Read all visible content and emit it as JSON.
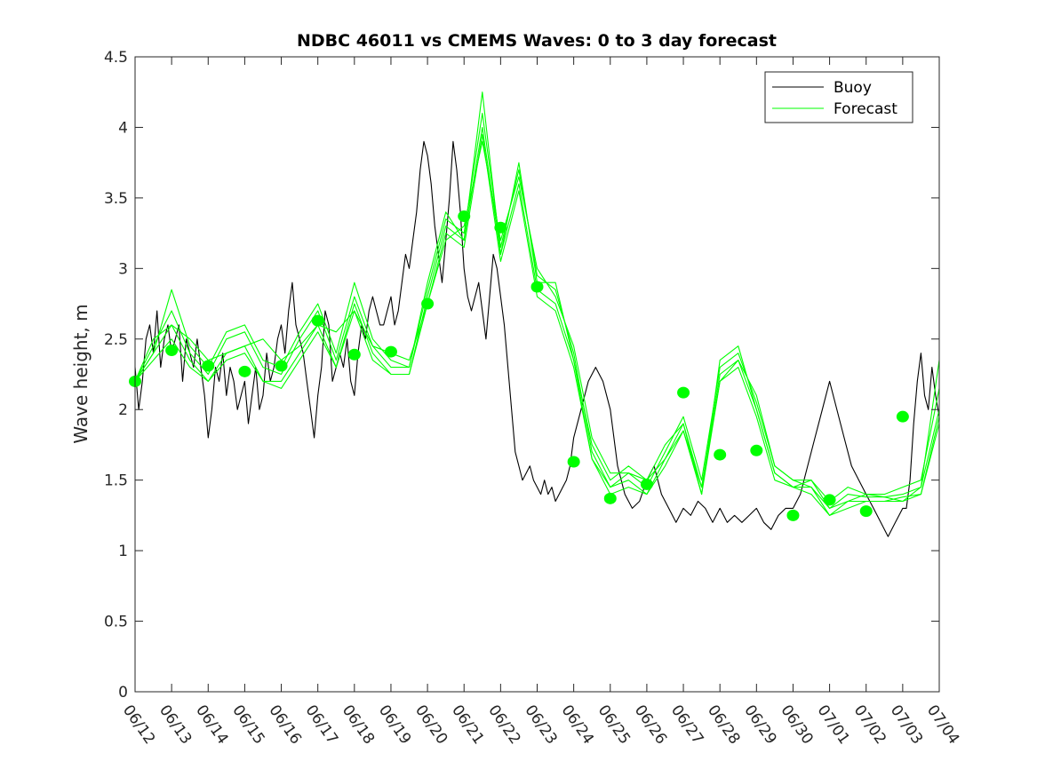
{
  "chart_data": {
    "type": "line",
    "title": "NDBC 46011 vs CMEMS Waves: 0 to 3 day forecast",
    "xlabel": "",
    "ylabel": "Wave height, m",
    "xlim": [
      "06/12",
      "07/04"
    ],
    "ylim": [
      0,
      4.5
    ],
    "yticks": [
      "0",
      "0.5",
      "1",
      "1.5",
      "2",
      "2.5",
      "3",
      "3.5",
      "4",
      "4.5"
    ],
    "x_tick_labels": [
      "06/12",
      "06/13",
      "06/14",
      "06/15",
      "06/16",
      "06/17",
      "06/18",
      "06/19",
      "06/20",
      "06/21",
      "06/22",
      "06/23",
      "06/24",
      "06/25",
      "06/26",
      "06/27",
      "06/28",
      "06/29",
      "06/30",
      "07/01",
      "07/02",
      "07/03",
      "07/04"
    ],
    "legend": {
      "placement": "top-right",
      "entries": [
        "Buoy",
        "Forecast"
      ]
    },
    "colors": {
      "buoy": "#000000",
      "forecast": "#00ff00"
    },
    "series": [
      {
        "name": "Buoy",
        "x": [
          0,
          0.1,
          0.2,
          0.3,
          0.4,
          0.5,
          0.6,
          0.7,
          0.8,
          0.9,
          1.0,
          1.1,
          1.2,
          1.3,
          1.4,
          1.5,
          1.6,
          1.7,
          1.8,
          1.9,
          2.0,
          2.1,
          2.2,
          2.3,
          2.4,
          2.5,
          2.6,
          2.7,
          2.8,
          2.9,
          3.0,
          3.1,
          3.2,
          3.3,
          3.4,
          3.5,
          3.6,
          3.7,
          3.8,
          3.9,
          4.0,
          4.1,
          4.2,
          4.3,
          4.4,
          4.5,
          4.6,
          4.7,
          4.8,
          4.9,
          5.0,
          5.1,
          5.2,
          5.3,
          5.4,
          5.5,
          5.6,
          5.7,
          5.8,
          5.9,
          6.0,
          6.1,
          6.2,
          6.3,
          6.4,
          6.5,
          6.6,
          6.7,
          6.8,
          6.9,
          7.0,
          7.1,
          7.2,
          7.3,
          7.4,
          7.5,
          7.6,
          7.7,
          7.8,
          7.9,
          8.0,
          8.1,
          8.2,
          8.3,
          8.4,
          8.5,
          8.6,
          8.7,
          8.8,
          8.9,
          9.0,
          9.1,
          9.2,
          9.3,
          9.4,
          9.5,
          9.6,
          9.7,
          9.8,
          9.9,
          10.0,
          10.1,
          10.2,
          10.3,
          10.4,
          10.5,
          10.6,
          10.7,
          10.8,
          10.9,
          11.0,
          11.1,
          11.2,
          11.3,
          11.4,
          11.5,
          11.6,
          11.7,
          11.8,
          11.9,
          12.0,
          12.2,
          12.4,
          12.6,
          12.8,
          13.0,
          13.2,
          13.4,
          13.6,
          13.8,
          14.0,
          14.2,
          14.4,
          14.6,
          14.8,
          15.0,
          15.2,
          15.4,
          15.6,
          15.8,
          16.0,
          16.2,
          16.4,
          16.6,
          16.8,
          17.0,
          17.2,
          17.4,
          17.6,
          17.8,
          18.0,
          18.2,
          18.4,
          18.6,
          18.8,
          19.0,
          19.2,
          19.4,
          19.6,
          19.8,
          20.0,
          20.2,
          20.4,
          20.6,
          20.8,
          21.0,
          21.1,
          21.2,
          21.3,
          21.4,
          21.5,
          21.6,
          21.7,
          21.8,
          21.9,
          22.0
        ],
        "values": [
          2.3,
          2.0,
          2.2,
          2.5,
          2.6,
          2.4,
          2.7,
          2.3,
          2.5,
          2.6,
          2.4,
          2.5,
          2.6,
          2.2,
          2.5,
          2.4,
          2.3,
          2.5,
          2.3,
          2.1,
          1.8,
          2.0,
          2.3,
          2.2,
          2.4,
          2.1,
          2.3,
          2.2,
          2.0,
          2.1,
          2.2,
          1.9,
          2.1,
          2.3,
          2.0,
          2.1,
          2.4,
          2.2,
          2.3,
          2.5,
          2.6,
          2.4,
          2.7,
          2.9,
          2.6,
          2.5,
          2.4,
          2.2,
          2.0,
          1.8,
          2.1,
          2.3,
          2.7,
          2.6,
          2.2,
          2.3,
          2.4,
          2.3,
          2.5,
          2.2,
          2.1,
          2.4,
          2.6,
          2.5,
          2.7,
          2.8,
          2.7,
          2.6,
          2.6,
          2.7,
          2.8,
          2.6,
          2.7,
          2.9,
          3.1,
          3.0,
          3.2,
          3.4,
          3.7,
          3.9,
          3.8,
          3.6,
          3.3,
          3.1,
          2.9,
          3.2,
          3.5,
          3.9,
          3.7,
          3.4,
          3.0,
          2.8,
          2.7,
          2.8,
          2.9,
          2.7,
          2.5,
          2.8,
          3.1,
          3.0,
          2.8,
          2.6,
          2.3,
          2.0,
          1.7,
          1.6,
          1.5,
          1.55,
          1.6,
          1.5,
          1.45,
          1.4,
          1.5,
          1.4,
          1.45,
          1.35,
          1.4,
          1.45,
          1.5,
          1.6,
          1.8,
          2.0,
          2.2,
          2.3,
          2.2,
          2.0,
          1.6,
          1.4,
          1.3,
          1.35,
          1.5,
          1.6,
          1.4,
          1.3,
          1.2,
          1.3,
          1.25,
          1.35,
          1.3,
          1.2,
          1.3,
          1.2,
          1.25,
          1.2,
          1.25,
          1.3,
          1.2,
          1.15,
          1.25,
          1.3,
          1.3,
          1.4,
          1.6,
          1.8,
          2.0,
          2.2,
          2.0,
          1.8,
          1.6,
          1.5,
          1.4,
          1.3,
          1.2,
          1.1,
          1.2,
          1.3,
          1.3,
          1.5,
          1.9,
          2.2,
          2.4,
          2.1,
          2.0,
          2.3,
          2.1,
          1.95
        ]
      },
      {
        "name": "Forecast",
        "x": [
          0,
          0.5,
          1,
          1.5,
          2,
          2.5,
          3,
          3.5,
          4,
          4.5,
          5,
          5.5,
          6,
          6.5,
          7,
          7.5,
          8,
          8.5,
          9,
          9.5,
          10,
          10.5,
          11,
          11.5,
          12,
          12.5,
          13,
          13.5,
          14,
          14.5,
          15,
          15.5,
          16,
          16.5,
          17,
          17.5,
          18,
          18.5,
          19,
          19.5,
          20,
          20.5,
          21,
          21.5,
          22
        ],
        "values": [
          2.2,
          2.5,
          2.6,
          2.5,
          2.35,
          2.4,
          2.45,
          2.5,
          2.35,
          2.45,
          2.6,
          2.55,
          2.7,
          2.45,
          2.4,
          2.35,
          2.75,
          3.2,
          3.3,
          3.9,
          3.2,
          3.65,
          3.0,
          2.8,
          2.45,
          1.8,
          1.55,
          1.55,
          1.5,
          1.65,
          1.85,
          1.45,
          2.2,
          2.35,
          2.1,
          1.6,
          1.5,
          1.45,
          1.3,
          1.35,
          1.4,
          1.38,
          1.35,
          1.45,
          2.35
        ]
      },
      {
        "name": "Forecast",
        "x": [
          0,
          0.5,
          1,
          1.5,
          2,
          2.5,
          3,
          3.5,
          4,
          4.5,
          5,
          5.5,
          6,
          6.5,
          7,
          7.5,
          8,
          8.5,
          9,
          9.5,
          10,
          10.5,
          11,
          11.5,
          12,
          12.5,
          13,
          13.5,
          14,
          14.5,
          15,
          15.5,
          16,
          16.5,
          17,
          17.5,
          18,
          18.5,
          19,
          19.5,
          20,
          20.5,
          21,
          21.5,
          22
        ],
        "values": [
          2.2,
          2.4,
          2.85,
          2.45,
          2.3,
          2.55,
          2.6,
          2.35,
          2.3,
          2.55,
          2.75,
          2.4,
          2.9,
          2.5,
          2.35,
          2.3,
          2.9,
          3.4,
          3.2,
          4.25,
          3.1,
          3.75,
          2.9,
          2.9,
          2.35,
          1.75,
          1.5,
          1.6,
          1.5,
          1.75,
          1.9,
          1.4,
          2.35,
          2.45,
          2.0,
          1.55,
          1.45,
          1.5,
          1.35,
          1.45,
          1.4,
          1.4,
          1.45,
          1.5,
          2.15
        ]
      },
      {
        "name": "Forecast",
        "x": [
          0,
          0.5,
          1,
          1.5,
          2,
          2.5,
          3,
          3.5,
          4,
          4.5,
          5,
          5.5,
          6,
          6.5,
          7,
          7.5,
          8,
          8.5,
          9,
          9.5,
          10,
          10.5,
          11,
          11.5,
          12,
          12.5,
          13,
          13.5,
          14,
          14.5,
          15,
          15.5,
          16,
          16.5,
          17,
          17.5,
          18,
          18.5,
          19,
          19.5,
          20,
          20.5,
          21,
          21.5,
          22
        ],
        "values": [
          2.2,
          2.45,
          2.7,
          2.4,
          2.25,
          2.5,
          2.55,
          2.3,
          2.25,
          2.5,
          2.7,
          2.35,
          2.8,
          2.45,
          2.3,
          2.3,
          2.85,
          3.35,
          3.25,
          4.1,
          3.15,
          3.7,
          2.95,
          2.85,
          2.4,
          1.7,
          1.45,
          1.55,
          1.45,
          1.7,
          1.95,
          1.5,
          2.3,
          2.4,
          2.05,
          1.6,
          1.5,
          1.5,
          1.3,
          1.4,
          1.38,
          1.38,
          1.4,
          1.45,
          2.0
        ]
      },
      {
        "name": "Forecast",
        "x": [
          0,
          0.5,
          1,
          1.5,
          2,
          2.5,
          3,
          3.5,
          4,
          4.5,
          5,
          5.5,
          6,
          6.5,
          7,
          7.5,
          8,
          8.5,
          9,
          9.5,
          10,
          10.5,
          11,
          11.5,
          12,
          12.5,
          13,
          13.5,
          14,
          14.5,
          15,
          15.5,
          16,
          16.5,
          17,
          17.5,
          18,
          18.5,
          19,
          19.5,
          20,
          20.5,
          21,
          21.5,
          22
        ],
        "values": [
          2.2,
          2.4,
          2.6,
          2.35,
          2.2,
          2.4,
          2.45,
          2.2,
          2.2,
          2.4,
          2.6,
          2.3,
          2.75,
          2.4,
          2.25,
          2.25,
          2.8,
          3.3,
          3.2,
          4.0,
          3.1,
          3.6,
          2.85,
          2.75,
          2.35,
          1.65,
          1.45,
          1.5,
          1.4,
          1.65,
          1.9,
          1.45,
          2.25,
          2.35,
          2.0,
          1.55,
          1.45,
          1.45,
          1.25,
          1.35,
          1.35,
          1.35,
          1.38,
          1.4,
          1.95
        ]
      },
      {
        "name": "Forecast",
        "x": [
          0,
          0.5,
          1,
          1.5,
          2,
          2.5,
          3,
          3.5,
          4,
          4.5,
          5,
          5.5,
          6,
          6.5,
          7,
          7.5,
          8,
          8.5,
          9,
          9.5,
          10,
          10.5,
          11,
          11.5,
          12,
          12.5,
          13,
          13.5,
          14,
          14.5,
          15,
          15.5,
          16,
          16.5,
          17,
          17.5,
          18,
          18.5,
          19,
          19.5,
          20,
          20.5,
          21,
          21.5,
          22
        ],
        "values": [
          2.2,
          2.35,
          2.5,
          2.3,
          2.2,
          2.35,
          2.4,
          2.2,
          2.15,
          2.35,
          2.55,
          2.3,
          2.7,
          2.35,
          2.25,
          2.25,
          2.75,
          3.25,
          3.15,
          3.95,
          3.05,
          3.55,
          2.8,
          2.7,
          2.3,
          1.65,
          1.4,
          1.45,
          1.4,
          1.6,
          1.85,
          1.4,
          2.2,
          2.3,
          1.95,
          1.5,
          1.45,
          1.4,
          1.25,
          1.3,
          1.35,
          1.35,
          1.35,
          1.4,
          1.9
        ]
      },
      {
        "name": "Forecast",
        "markers": true,
        "x": [
          0,
          1,
          2,
          3,
          4,
          5,
          6,
          7,
          8,
          9,
          10,
          11,
          12,
          13,
          14,
          15,
          16,
          17,
          18,
          19,
          20,
          21
        ],
        "values": [
          2.2,
          2.42,
          2.31,
          2.27,
          2.31,
          2.63,
          2.39,
          2.41,
          2.75,
          3.37,
          3.29,
          2.87,
          1.63,
          1.37,
          1.47,
          2.12,
          1.68,
          1.71,
          1.25,
          1.36,
          1.28,
          1.95
        ]
      }
    ]
  }
}
